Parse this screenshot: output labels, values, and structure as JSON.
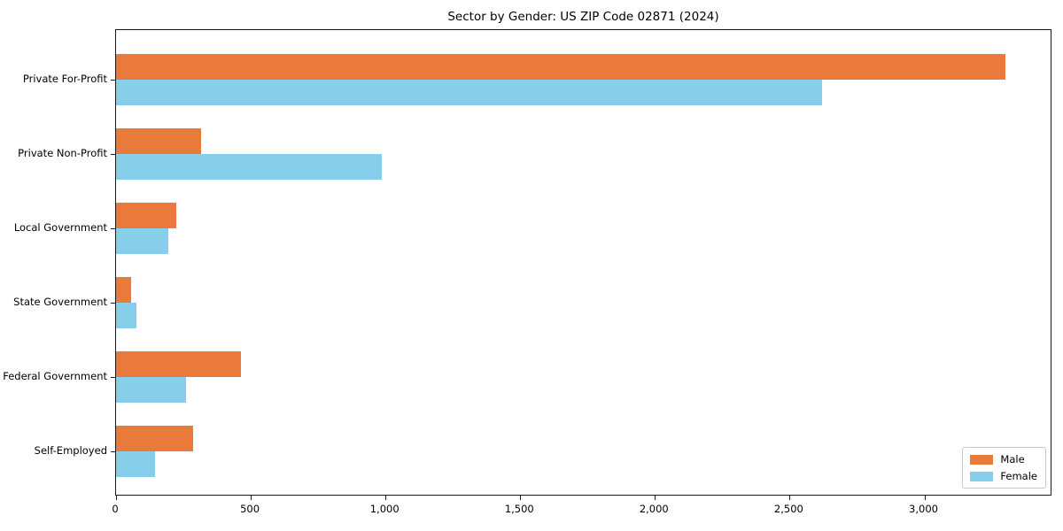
{
  "chart_data": {
    "type": "bar",
    "orientation": "horizontal",
    "title": "Sector by Gender: US ZIP Code 02871 (2024)",
    "categories": [
      "Private For-Profit",
      "Private Non-Profit",
      "Local Government",
      "State Government",
      "Federal Government",
      "Self-Employed"
    ],
    "series": [
      {
        "name": "Male",
        "color": "#e97a3b",
        "values": [
          3300,
          315,
          225,
          55,
          465,
          285
        ]
      },
      {
        "name": "Female",
        "color": "#87ceeb",
        "values": [
          2620,
          985,
          195,
          75,
          260,
          145
        ]
      }
    ],
    "xlabel": "",
    "ylabel": "",
    "xlim": [
      0,
      3475
    ],
    "xticks": [
      {
        "value": 0,
        "label": "0"
      },
      {
        "value": 500,
        "label": "500"
      },
      {
        "value": 1000,
        "label": "1,000"
      },
      {
        "value": 1500,
        "label": "1,500"
      },
      {
        "value": 2000,
        "label": "2,000"
      },
      {
        "value": 2500,
        "label": "2,500"
      },
      {
        "value": 3000,
        "label": "3,000"
      }
    ],
    "legend_position": "lower right",
    "grid": false,
    "background_color": "#ffffff",
    "axis_color": "#1a1a1a"
  }
}
